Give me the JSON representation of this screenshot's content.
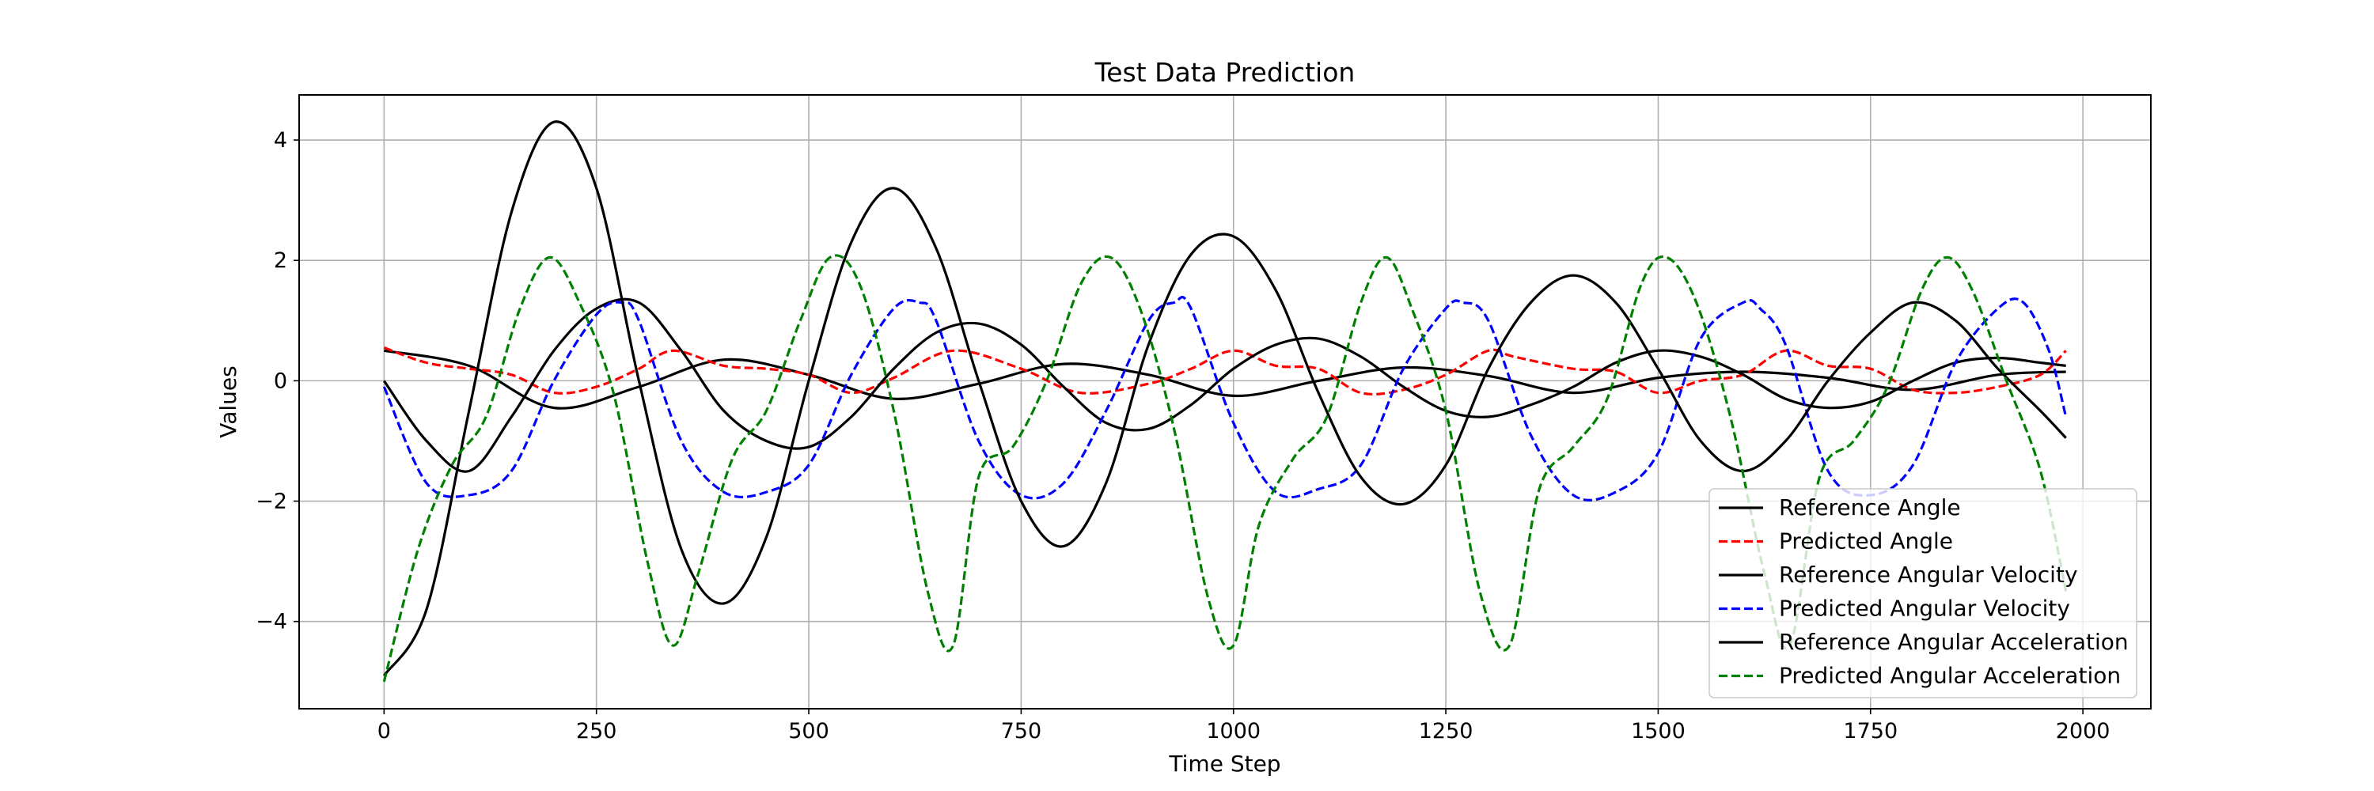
{
  "chart_data": {
    "type": "line",
    "title": "Test Data Prediction",
    "xlabel": "Time Step",
    "ylabel": "Values",
    "xlim": [
      -100,
      2080
    ],
    "ylim": [
      -5.45,
      4.75
    ],
    "xticks": [
      0,
      250,
      500,
      750,
      1000,
      1250,
      1500,
      1750,
      2000
    ],
    "xtick_labels": [
      "0",
      "250",
      "500",
      "750",
      "1000",
      "1250",
      "1500",
      "1750",
      "2000"
    ],
    "yticks": [
      -4,
      -2,
      0,
      2,
      4
    ],
    "ytick_labels": [
      "−4",
      "−2",
      "0",
      "2",
      "4"
    ],
    "grid": true,
    "legend_position": "lower right",
    "series": [
      {
        "name": "Reference Angle",
        "color": "#000000",
        "dash": "solid",
        "x": [
          0,
          100,
          200,
          300,
          400,
          500,
          600,
          700,
          800,
          900,
          1000,
          1100,
          1200,
          1300,
          1400,
          1500,
          1600,
          1700,
          1800,
          1900,
          1980
        ],
        "y": [
          0.5,
          0.25,
          -0.45,
          -0.1,
          0.35,
          0.1,
          -0.3,
          -0.05,
          0.28,
          0.1,
          -0.25,
          0.0,
          0.22,
          0.08,
          -0.2,
          0.05,
          0.15,
          0.05,
          -0.15,
          0.1,
          0.15
        ]
      },
      {
        "name": "Predicted Angle",
        "color": "#ff0000",
        "dash": "dashed",
        "x": [
          0,
          50,
          100,
          150,
          200,
          250,
          300,
          340,
          400,
          450,
          500,
          550,
          600,
          670,
          750,
          820,
          900,
          950,
          1000,
          1050,
          1100,
          1150,
          1200,
          1250,
          1300,
          1330,
          1400,
          1450,
          1500,
          1550,
          1600,
          1650,
          1700,
          1750,
          1800,
          1850,
          1900,
          1950,
          1980
        ],
        "y": [
          0.55,
          0.3,
          0.2,
          0.1,
          -0.2,
          -0.1,
          0.2,
          0.5,
          0.25,
          0.2,
          0.1,
          -0.2,
          0.05,
          0.5,
          0.2,
          -0.2,
          -0.05,
          0.2,
          0.5,
          0.25,
          0.2,
          -0.2,
          -0.15,
          0.1,
          0.5,
          0.4,
          0.2,
          0.15,
          -0.2,
          0.0,
          0.1,
          0.5,
          0.25,
          0.2,
          -0.15,
          -0.2,
          -0.1,
          0.1,
          0.5
        ]
      },
      {
        "name": "Reference Angular Velocity",
        "color": "#000000",
        "dash": "solid",
        "x": [
          0,
          50,
          100,
          150,
          200,
          250,
          300,
          350,
          400,
          450,
          500,
          550,
          600,
          650,
          700,
          750,
          800,
          850,
          900,
          950,
          1000,
          1050,
          1100,
          1150,
          1200,
          1250,
          1300,
          1350,
          1400,
          1450,
          1500,
          1550,
          1600,
          1650,
          1700,
          1750,
          1800,
          1850,
          1900,
          1950,
          1980
        ],
        "y": [
          0.0,
          -1.0,
          -1.5,
          -0.6,
          0.5,
          1.2,
          1.3,
          0.5,
          -0.5,
          -1.0,
          -1.1,
          -0.6,
          0.2,
          0.8,
          0.95,
          0.6,
          -0.1,
          -0.7,
          -0.8,
          -0.4,
          0.2,
          0.6,
          0.7,
          0.4,
          -0.1,
          -0.5,
          -0.6,
          -0.4,
          -0.1,
          0.3,
          0.5,
          0.4,
          0.1,
          -0.3,
          -0.45,
          -0.35,
          0.0,
          0.3,
          0.38,
          0.3,
          0.25
        ]
      },
      {
        "name": "Predicted Angular Velocity",
        "color": "#0000ff",
        "dash": "dashed",
        "x": [
          0,
          50,
          100,
          150,
          200,
          250,
          280,
          300,
          350,
          400,
          450,
          500,
          550,
          600,
          630,
          650,
          700,
          750,
          800,
          850,
          900,
          930,
          950,
          1000,
          1050,
          1100,
          1150,
          1200,
          1250,
          1270,
          1300,
          1350,
          1400,
          1450,
          1500,
          1550,
          1600,
          1620,
          1650,
          1700,
          1750,
          1800,
          1850,
          1900,
          1930,
          1960,
          1980
        ],
        "y": [
          -0.1,
          -1.7,
          -1.9,
          -1.5,
          0.0,
          1.1,
          1.3,
          1.0,
          -1.0,
          -1.85,
          -1.85,
          -1.4,
          0.1,
          1.2,
          1.3,
          1.0,
          -1.0,
          -1.9,
          -1.7,
          -0.5,
          1.0,
          1.3,
          1.2,
          -0.7,
          -1.85,
          -1.8,
          -1.4,
          0.2,
          1.2,
          1.3,
          1.0,
          -0.9,
          -1.9,
          -1.85,
          -1.2,
          0.7,
          1.3,
          1.2,
          0.6,
          -1.5,
          -1.9,
          -1.4,
          0.3,
          1.2,
          1.3,
          0.5,
          -0.6
        ]
      },
      {
        "name": "Reference Angular Acceleration",
        "color": "#000000",
        "dash": "solid",
        "x": [
          0,
          50,
          100,
          150,
          200,
          250,
          300,
          350,
          400,
          450,
          500,
          550,
          600,
          650,
          700,
          750,
          800,
          850,
          900,
          950,
          1000,
          1050,
          1100,
          1150,
          1200,
          1250,
          1300,
          1350,
          1400,
          1450,
          1500,
          1550,
          1600,
          1650,
          1700,
          1750,
          1800,
          1850,
          1900,
          1950,
          1980
        ],
        "y": [
          -4.9,
          -3.8,
          -0.5,
          2.8,
          4.3,
          3.2,
          0.0,
          -2.8,
          -3.7,
          -2.6,
          0.0,
          2.3,
          3.2,
          2.2,
          0.0,
          -2.0,
          -2.75,
          -1.7,
          0.6,
          2.1,
          2.4,
          1.5,
          -0.2,
          -1.6,
          -2.05,
          -1.4,
          0.2,
          1.3,
          1.75,
          1.3,
          0.2,
          -1.0,
          -1.5,
          -1.0,
          0.0,
          0.8,
          1.3,
          1.0,
          0.2,
          -0.5,
          -0.95
        ]
      },
      {
        "name": "Predicted Angular Acceleration",
        "color": "#008000",
        "dash": "dashed",
        "x": [
          0,
          40,
          80,
          120,
          160,
          195,
          230,
          270,
          310,
          340,
          370,
          410,
          450,
          490,
          525,
          560,
          600,
          640,
          670,
          700,
          740,
          780,
          820,
          855,
          890,
          930,
          970,
          1000,
          1030,
          1070,
          1110,
          1150,
          1180,
          1210,
          1250,
          1290,
          1325,
          1360,
          1400,
          1440,
          1480,
          1510,
          1545,
          1585,
          1625,
          1655,
          1690,
          1730,
          1770,
          1810,
          1840,
          1870,
          1910,
          1950,
          1980
        ],
        "y": [
          -5.0,
          -2.8,
          -1.4,
          -0.6,
          1.2,
          2.05,
          1.3,
          -0.2,
          -3.0,
          -4.4,
          -3.2,
          -1.3,
          -0.5,
          1.0,
          2.05,
          1.6,
          -0.5,
          -3.5,
          -4.4,
          -1.6,
          -1.1,
          0.0,
          1.6,
          2.05,
          1.2,
          -0.8,
          -3.6,
          -4.4,
          -2.4,
          -1.3,
          -0.6,
          1.3,
          2.05,
          1.2,
          -0.5,
          -3.5,
          -4.4,
          -1.8,
          -1.1,
          -0.3,
          1.6,
          2.05,
          1.3,
          -0.6,
          -3.2,
          -4.4,
          -1.6,
          -1.0,
          -0.1,
          1.5,
          2.05,
          1.5,
          0.0,
          -1.5,
          -3.5
        ]
      }
    ]
  }
}
